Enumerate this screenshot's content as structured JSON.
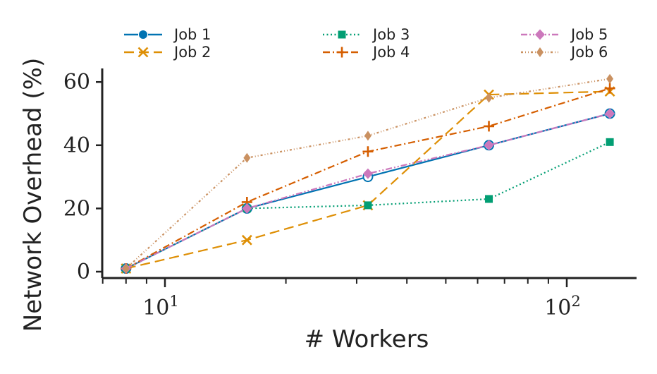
{
  "chart_data": {
    "type": "line",
    "xlabel": "# Workers",
    "ylabel": "Network Overhead (%)",
    "xscale": "log",
    "xlim": [
      7,
      150
    ],
    "ylim": [
      -2,
      65
    ],
    "x_ticks": [
      {
        "value": 10,
        "base": "10",
        "exp": "1"
      },
      {
        "value": 100,
        "base": "10",
        "exp": "2"
      }
    ],
    "y_ticks": [
      0,
      20,
      40,
      60
    ],
    "grid": false,
    "legend": {
      "placement": "top",
      "columns": 3
    },
    "x": [
      8,
      16,
      32,
      64,
      128
    ],
    "series": [
      {
        "name": "Job 1",
        "values": [
          1,
          20,
          30,
          40,
          50
        ],
        "color": "#0173b2",
        "dash": "",
        "marker": "circle-open"
      },
      {
        "name": "Job 2",
        "values": [
          1,
          10,
          21,
          56,
          57
        ],
        "color": "#de8f05",
        "dash": "14,7",
        "marker": "x"
      },
      {
        "name": "Job 3",
        "values": [
          1,
          20,
          21,
          23,
          41
        ],
        "color": "#029e73",
        "dash": "2,3.5",
        "marker": "square"
      },
      {
        "name": "Job 4",
        "values": [
          1,
          22,
          38,
          46,
          58
        ],
        "color": "#d55e00",
        "dash": "10,4,2,4",
        "marker": "plus"
      },
      {
        "name": "Job 5",
        "values": [
          1,
          20,
          31,
          40,
          50
        ],
        "color": "#cc78bc",
        "dash": "9,3,2,3,2,3",
        "marker": "diamond"
      },
      {
        "name": "Job 6",
        "values": [
          1,
          36,
          43,
          55,
          61
        ],
        "color": "#ca9161",
        "dash": "3,3,1,3,1,3",
        "marker": "thin-diamond"
      }
    ]
  }
}
